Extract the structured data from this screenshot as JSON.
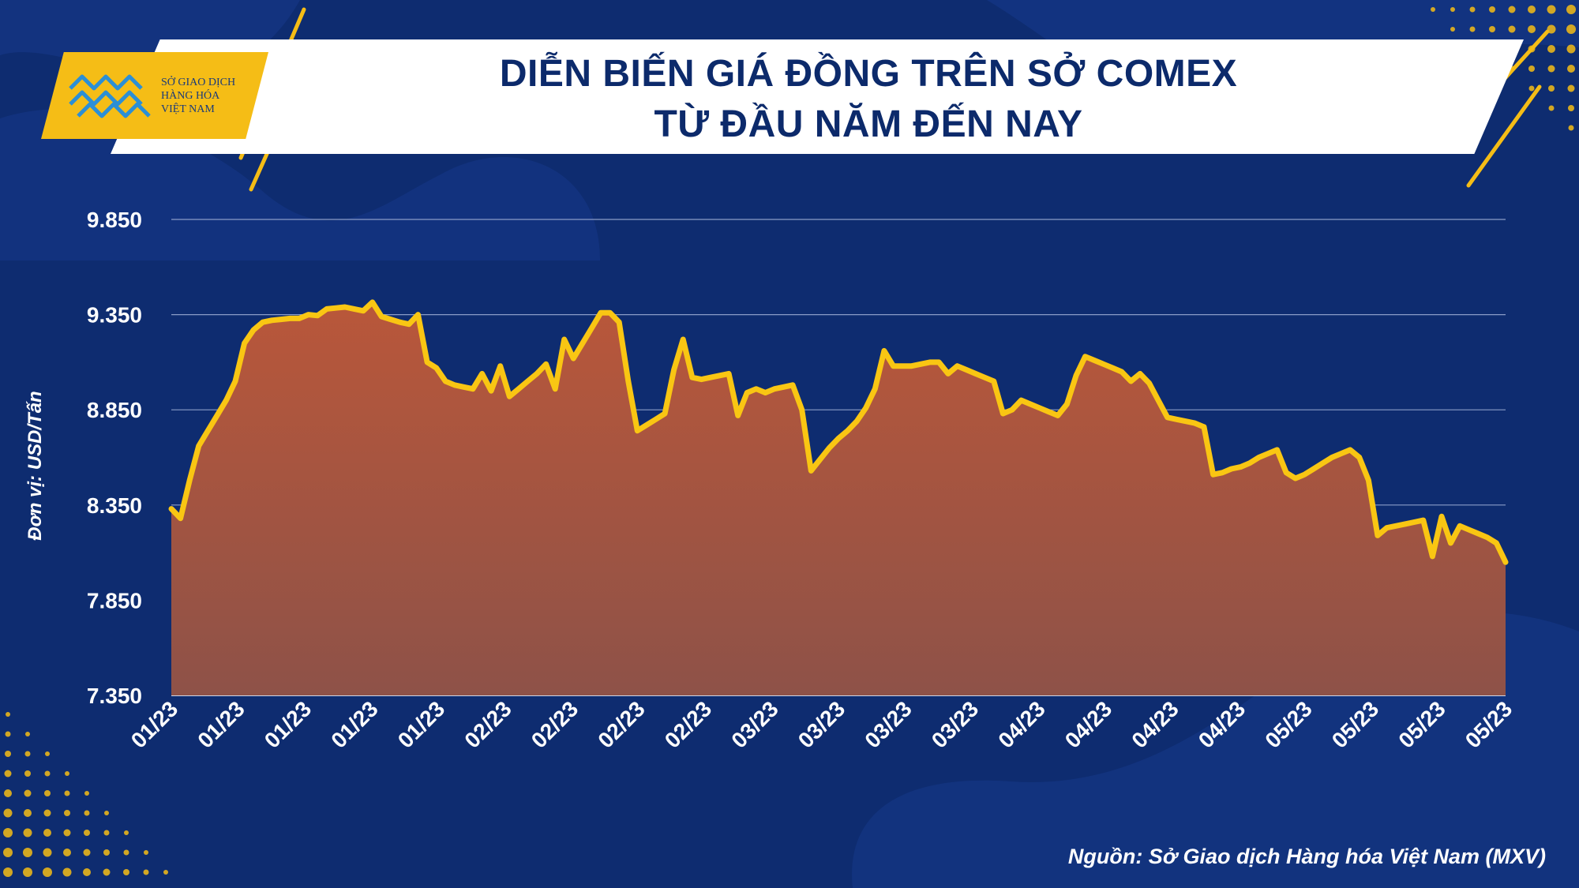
{
  "header": {
    "title_line1": "DIỄN BIẾN GIÁ ĐỒNG TRÊN SỞ COMEX",
    "title_line2": "TỪ ĐẦU NĂM ĐẾN NAY"
  },
  "logo": {
    "line1": "SỞ GIAO DỊCH",
    "line2": "HÀNG HÓA",
    "line3": "VIỆT NAM"
  },
  "footer": {
    "source": "Nguồn: Sở Giao dịch Hàng hóa Việt Nam (MXV)"
  },
  "colors": {
    "background": "#0e2c70",
    "line": "#f9c613",
    "fill_top": "#b9573a",
    "fill_bottom": "#8e5248",
    "accent": "#f5bd16"
  },
  "chart_data": {
    "type": "area",
    "ylabel": "Đơn vị: USD/Tấn",
    "ylim": [
      7350,
      9850
    ],
    "yticks": [
      "9.850",
      "9.350",
      "8.850",
      "8.350",
      "7.850",
      "7.350"
    ],
    "ytick_values": [
      9850,
      9350,
      8850,
      8350,
      7850,
      7350
    ],
    "xtick_labels": [
      "01/23",
      "01/23",
      "01/23",
      "01/23",
      "01/23",
      "02/23",
      "02/23",
      "02/23",
      "02/23",
      "03/23",
      "03/23",
      "03/23",
      "03/23",
      "04/23",
      "04/23",
      "04/23",
      "04/23",
      "05/23",
      "05/23",
      "05/23",
      "05/23"
    ],
    "grid": true,
    "series": [
      {
        "values": [
          8330,
          8280,
          8480,
          8660,
          8740,
          8820,
          8900,
          9000,
          9200,
          9270,
          9310,
          9320,
          9325,
          9330,
          9330,
          9350,
          9345,
          9380,
          9385,
          9390,
          9380,
          9370,
          9415,
          9340,
          9325,
          9310,
          9300,
          9350,
          9100,
          9070,
          9000,
          8980,
          8970,
          8960,
          9040,
          8950,
          9080,
          8920,
          8960,
          9000,
          9040,
          9090,
          8960,
          9220,
          9120,
          9200,
          9280,
          9360,
          9360,
          9310,
          9000,
          8740,
          8770,
          8800,
          8830,
          9060,
          9220,
          9020,
          9010,
          9020,
          9030,
          9040,
          8820,
          8940,
          8960,
          8940,
          8960,
          8970,
          8980,
          8850,
          8530,
          8590,
          8650,
          8700,
          8740,
          8790,
          8860,
          8960,
          9160,
          9080,
          9080,
          9080,
          9090,
          9100,
          9100,
          9040,
          9080,
          9060,
          9040,
          9020,
          9000,
          8830,
          8850,
          8900,
          8880,
          8860,
          8840,
          8820,
          8880,
          9030,
          9130,
          9110,
          9090,
          9070,
          9050,
          9000,
          9040,
          8990,
          8900,
          8810,
          8800,
          8790,
          8780,
          8760,
          8510,
          8520,
          8540,
          8550,
          8570,
          8600,
          8620,
          8640,
          8520,
          8490,
          8510,
          8540,
          8570,
          8600,
          8620,
          8640,
          8600,
          8480,
          8190,
          8230,
          8240,
          8250,
          8260,
          8270,
          8080,
          8290,
          8150,
          8240,
          8220,
          8200,
          8180,
          8150,
          8050
        ]
      }
    ]
  }
}
